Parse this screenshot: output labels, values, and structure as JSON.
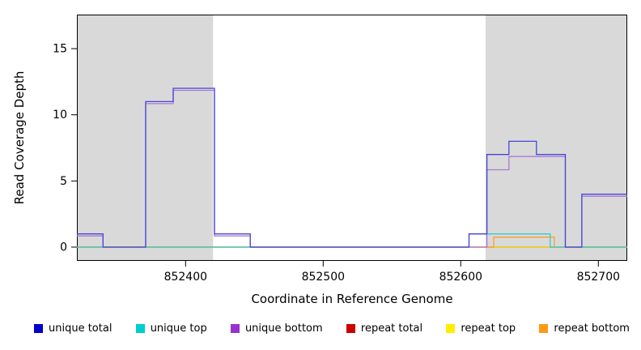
{
  "chart_data": {
    "type": "line",
    "subtype": "step",
    "title": "",
    "xlabel": "Coordinate in Reference Genome",
    "ylabel": "Read Coverage Depth",
    "xlim": [
      852321,
      852721
    ],
    "ylim": [
      0,
      17
    ],
    "xticks": [
      852400,
      852500,
      852600,
      852700
    ],
    "yticks": [
      0,
      5,
      10,
      15
    ],
    "grid": false,
    "shaded_regions": [
      {
        "x0": 852321,
        "x1": 852420,
        "color": "#d9d9d9"
      },
      {
        "x0": 852618,
        "x1": 852721,
        "color": "#d9d9d9"
      }
    ],
    "series": [
      {
        "name": "repeat total",
        "color": "#dd1111",
        "points": [
          [
            852321,
            0
          ]
        ]
      },
      {
        "name": "repeat top",
        "color": "#f2e600",
        "points": [
          [
            852321,
            0
          ]
        ]
      },
      {
        "name": "repeat bottom",
        "color": "#ff9d2e",
        "points": [
          [
            852321,
            0
          ],
          [
            852624,
            1
          ],
          [
            852668,
            0
          ]
        ]
      },
      {
        "name": "unique bottom",
        "color": "#a97bd4",
        "points": [
          [
            852321,
            1
          ],
          [
            852340,
            0
          ],
          [
            852371,
            11
          ],
          [
            852391,
            12
          ],
          [
            852421,
            1
          ],
          [
            852447,
            0
          ],
          [
            852619,
            6
          ],
          [
            852635,
            7
          ],
          [
            852676,
            0
          ],
          [
            852688,
            4
          ]
        ]
      },
      {
        "name": "unique top",
        "color": "#2bd0d0",
        "points": [
          [
            852321,
            0
          ],
          [
            852606,
            1
          ],
          [
            852665,
            0
          ]
        ]
      },
      {
        "name": "unique total",
        "color": "#4646d8",
        "points": [
          [
            852321,
            1
          ],
          [
            852340,
            0
          ],
          [
            852371,
            11
          ],
          [
            852391,
            12
          ],
          [
            852421,
            1
          ],
          [
            852447,
            0
          ],
          [
            852606,
            1
          ],
          [
            852619,
            7
          ],
          [
            852635,
            8
          ],
          [
            852655,
            7
          ],
          [
            852676,
            0
          ],
          [
            852688,
            4
          ]
        ]
      }
    ],
    "legend": {
      "position": "bottom",
      "items": [
        {
          "label": "unique total",
          "color": "#0000cd"
        },
        {
          "label": "unique top",
          "color": "#00cdcd"
        },
        {
          "label": "unique bottom",
          "color": "#9932cc"
        },
        {
          "label": "repeat total",
          "color": "#cd0000"
        },
        {
          "label": "repeat top",
          "color": "#ffee00"
        },
        {
          "label": "repeat bottom",
          "color": "#ff9912"
        }
      ]
    }
  }
}
